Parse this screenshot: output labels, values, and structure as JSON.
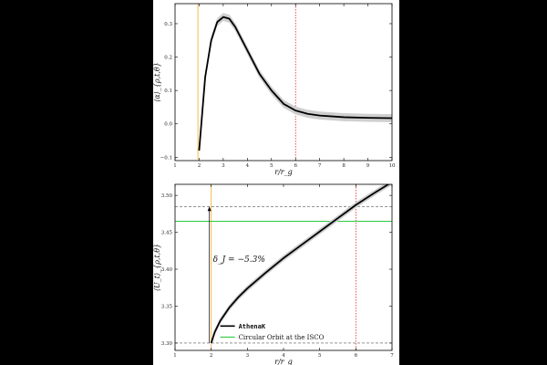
{
  "chart_data": [
    {
      "type": "line",
      "xlabel": "r/r_g",
      "ylabel": "⟨α⟩_{ρ,t,θ}",
      "xlim": [
        1,
        10
      ],
      "ylim": [
        -0.11,
        0.36
      ],
      "xticks": [
        "1",
        "2",
        "3",
        "4",
        "5",
        "6",
        "7",
        "8",
        "9",
        "10"
      ],
      "yticks": [
        "−0.1",
        "0.0",
        "0.1",
        "0.2",
        "0.3"
      ],
      "vlines": [
        {
          "x": 1.95,
          "color": "#f5b041",
          "style": "solid"
        },
        {
          "x": 6.0,
          "color": "#e53935",
          "style": "dotted"
        }
      ],
      "series": [
        {
          "color": "#000000",
          "x": [
            2.0,
            2.25,
            2.5,
            2.75,
            3.0,
            3.25,
            3.5,
            4.0,
            4.5,
            5.0,
            5.5,
            6.0,
            6.5,
            7.0,
            8.0,
            9.0,
            10.0
          ],
          "y": [
            -0.08,
            0.14,
            0.25,
            0.305,
            0.32,
            0.315,
            0.29,
            0.22,
            0.15,
            0.1,
            0.06,
            0.04,
            0.03,
            0.025,
            0.02,
            0.018,
            0.017
          ],
          "band": 0.012
        }
      ]
    },
    {
      "type": "line",
      "xlabel": "r/r_g",
      "ylabel": "⟨U_t⟩_{ρ,t,θ}",
      "xlim": [
        1,
        7
      ],
      "ylim": [
        3.29,
        3.515
      ],
      "xticks": [
        "1",
        "2",
        "3",
        "4",
        "5",
        "6",
        "7"
      ],
      "yticks": [
        "3.30",
        "3.35",
        "3.40",
        "3.45",
        "3.50"
      ],
      "vlines": [
        {
          "x": 2.0,
          "color": "#f5b041",
          "style": "solid"
        },
        {
          "x": 6.0,
          "color": "#e53935",
          "style": "dotted"
        }
      ],
      "hlines": [
        {
          "y": 3.465,
          "color": "#2ecc40",
          "style": "solid"
        },
        {
          "y": 3.485,
          "color": "#555555",
          "style": "dashed"
        },
        {
          "y": 3.3,
          "color": "#555555",
          "style": "dashed"
        }
      ],
      "annotation": "δ_J = −5.3%",
      "series": [
        {
          "name": "AthenaK",
          "color": "#000000",
          "x": [
            2.0,
            2.1,
            2.25,
            2.5,
            2.75,
            3.0,
            3.5,
            4.0,
            4.5,
            5.0,
            5.5,
            6.0,
            6.5,
            7.0
          ],
          "y": [
            3.3,
            3.315,
            3.33,
            3.348,
            3.362,
            3.374,
            3.395,
            3.415,
            3.433,
            3.451,
            3.469,
            3.487,
            3.503,
            3.518
          ],
          "band": 0.004
        },
        {
          "name": "Circular Orbit at the ISCO",
          "color": "#2ecc40"
        }
      ]
    }
  ]
}
